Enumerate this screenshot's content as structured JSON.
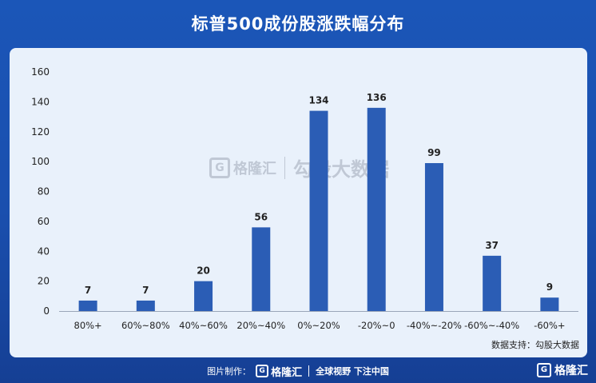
{
  "title": "标普500成份股涨跌幅分布",
  "source_label": "数据支持：勾股大数据",
  "watermark": {
    "g": "G",
    "brand": "格隆汇",
    "text": "勾股大数据"
  },
  "footer": {
    "made_by": "图片制作：",
    "g": "G",
    "brand": "格隆汇",
    "slogan": "全球视野 下注中国"
  },
  "corner_logo": {
    "g": "G",
    "brand": "格隆汇"
  },
  "colors": {
    "bar": "#2b5db5",
    "background": "#1b56b8",
    "panel": "#e9f1fb"
  },
  "chart_data": {
    "type": "bar",
    "title": "标普500成份股涨跌幅分布",
    "categories": [
      "80%+",
      "60%~80%",
      "40%~60%",
      "20%~40%",
      "0%~20%",
      "-20%~0",
      "-40%~-20%",
      "-60%~-40%",
      "-60%+"
    ],
    "values": [
      7,
      7,
      20,
      56,
      134,
      136,
      99,
      37,
      9
    ],
    "ylim": [
      0,
      160
    ],
    "yticks": [
      0,
      20,
      40,
      60,
      80,
      100,
      120,
      140,
      160
    ],
    "xlabel": "",
    "ylabel": "",
    "grid": false,
    "data_labels": true
  }
}
